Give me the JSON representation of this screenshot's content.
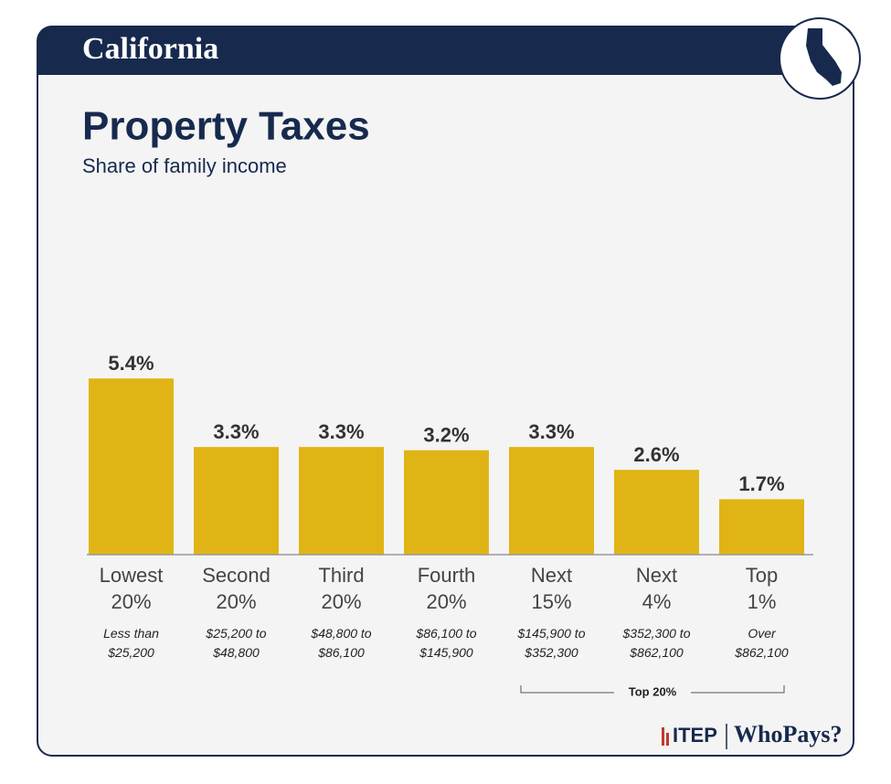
{
  "chart_data": {
    "type": "bar",
    "header": "California",
    "title": "Property Taxes",
    "subtitle": "Share of family income",
    "categories": [
      "Lowest 20%",
      "Second 20%",
      "Third 20%",
      "Fourth 20%",
      "Next 15%",
      "Next 4%",
      "Top 1%"
    ],
    "income_ranges": [
      "Less than $25,200",
      "$25,200 to $48,800",
      "$48,800 to $86,100",
      "$86,100 to $145,900",
      "$145,900 to $352,300",
      "$352,300 to $862,100",
      "Over $862,100"
    ],
    "values": [
      5.4,
      3.3,
      3.3,
      3.2,
      3.3,
      2.6,
      1.7
    ],
    "value_labels": [
      "5.4%",
      "3.3%",
      "3.3%",
      "3.2%",
      "3.3%",
      "2.6%",
      "1.7%"
    ],
    "color": "#e0b415",
    "bracket_label": "Top 20%",
    "logo": [
      "ITEP",
      "WhoPays?"
    ]
  }
}
